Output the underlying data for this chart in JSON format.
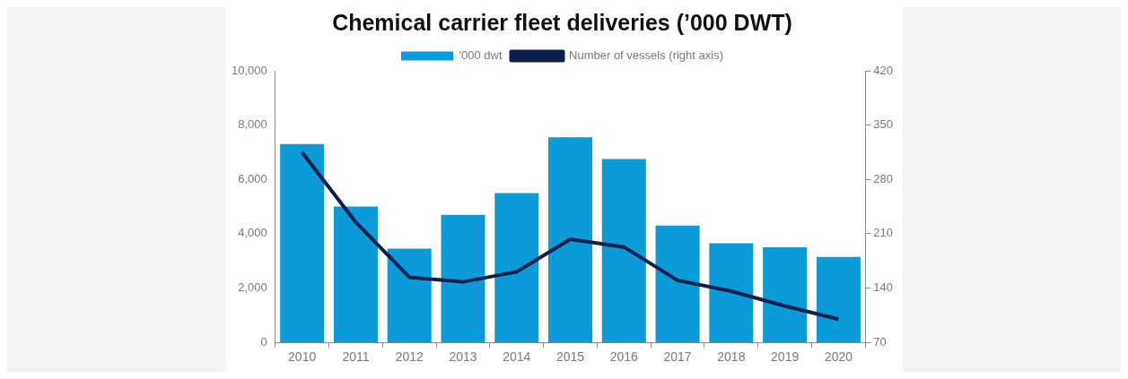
{
  "chart_data": {
    "type": "bar",
    "title": "Chemical carrier fleet deliveries (’000 DWT)",
    "categories": [
      "2010",
      "2011",
      "2012",
      "2013",
      "2014",
      "2015",
      "2016",
      "2017",
      "2018",
      "2019",
      "2020"
    ],
    "series": [
      {
        "name": "'000 dwt",
        "color": "#0a9bd8",
        "values": [
          7300,
          5000,
          3450,
          4700,
          5500,
          7550,
          6750,
          4300,
          3650,
          3500,
          3150
        ]
      },
      {
        "name": "Number of vessels (right axis)",
        "type": "line",
        "axis": "y2",
        "color": "#0d1f4c",
        "values": [
          315,
          225,
          154,
          148,
          161,
          203,
          193,
          150,
          136,
          117,
          100
        ]
      }
    ],
    "ylim": [
      0,
      10000
    ],
    "yticks": [
      {
        "value": 0,
        "label": "0"
      },
      {
        "value": 2000,
        "label": "2,000"
      },
      {
        "value": 4000,
        "label": "4,000"
      },
      {
        "value": 6000,
        "label": "6,000"
      },
      {
        "value": 8000,
        "label": "8,000"
      },
      {
        "value": 10000,
        "label": "10,000"
      }
    ],
    "y2lim": [
      70,
      420
    ],
    "y2ticks": [
      70,
      140,
      210,
      280,
      350,
      420
    ],
    "grid": false,
    "legend": "top",
    "marker": "none"
  }
}
